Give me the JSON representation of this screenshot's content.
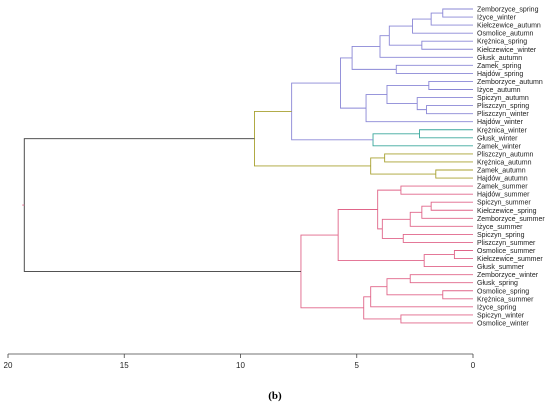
{
  "figure": {
    "caption": "(b)"
  },
  "colors": {
    "root": "#3a3a3a",
    "purple": "#8a87d6",
    "teal": "#3aa79c",
    "olive": "#a8a130",
    "pink": "#e06589"
  },
  "chart_data": {
    "type": "dendrogram",
    "orientation": "right",
    "xlim": [
      20,
      0
    ],
    "ticks": [
      "20",
      "15",
      "10",
      "5",
      "0"
    ],
    "leaves": [
      "Zemborzyce_spring",
      "Iżyce_winter",
      "Kiełczewice_autumn",
      "Osmolice_autumn",
      "Krężnica_spring",
      "Kiełczewice_winter",
      "Głusk_autumn",
      "Zamek_spring",
      "Hajdów_spring",
      "Zemborzyce_autumn",
      "Iżyce_autumn",
      "Spiczyn_autumn",
      "Pliszczyn_spring",
      "Pliszczyn_winter",
      "Hajdów_winter",
      "Krężnica_winter",
      "Głusk_winter",
      "Zamek_winter",
      "Pliszczyn_autumn",
      "Krężnica_autumn",
      "Zamek_autumn",
      "Hajdów_autumn",
      "Zamek_summer",
      "Hajdów_summer",
      "Spiczyn_summer",
      "Kiełczewice_spring",
      "Zemborzyce_summer",
      "Iżyce_summer",
      "Spiczyn_spring",
      "Pliszczyn_summer",
      "Osmolice_summer",
      "Kiełczewice_summer",
      "Głusk_summer",
      "Zemborzyce_winter",
      "Głusk_spring",
      "Osmolice_spring",
      "Krężnica_summer",
      "Iżyce_spring",
      "Spiczyn_winter",
      "Osmolice_winter"
    ],
    "merges": [
      {
        "a": "L0",
        "b": "L1",
        "h": 1.3,
        "c": "purple"
      },
      {
        "a": "M0",
        "b": "L2",
        "h": 1.8,
        "c": "purple"
      },
      {
        "a": "M1",
        "b": "L3",
        "h": 2.6,
        "c": "purple"
      },
      {
        "a": "L4",
        "b": "L5",
        "h": 2.2,
        "c": "purple"
      },
      {
        "a": "M2",
        "b": "M3",
        "h": 3.6,
        "c": "purple"
      },
      {
        "a": "M4",
        "b": "L6",
        "h": 4.0,
        "c": "purple"
      },
      {
        "a": "L7",
        "b": "L8",
        "h": 3.3,
        "c": "purple"
      },
      {
        "a": "M5",
        "b": "M6",
        "h": 5.2,
        "c": "purple"
      },
      {
        "a": "L9",
        "b": "L10",
        "h": 1.9,
        "c": "purple"
      },
      {
        "a": "L12",
        "b": "L13",
        "h": 2.0,
        "c": "purple"
      },
      {
        "a": "L11",
        "b": "M9",
        "h": 2.4,
        "c": "purple"
      },
      {
        "a": "M8",
        "b": "M10",
        "h": 3.7,
        "c": "purple"
      },
      {
        "a": "M11",
        "b": "L14",
        "h": 4.6,
        "c": "purple"
      },
      {
        "a": "M7",
        "b": "M12",
        "h": 5.7,
        "c": "purple"
      },
      {
        "a": "L15",
        "b": "L16",
        "h": 2.3,
        "c": "teal"
      },
      {
        "a": "M14",
        "b": "L17",
        "h": 4.3,
        "c": "teal"
      },
      {
        "a": "M13",
        "b": "M15",
        "h": 7.8,
        "c": "purple"
      },
      {
        "a": "L18",
        "b": "L19",
        "h": 3.8,
        "c": "olive"
      },
      {
        "a": "L20",
        "b": "L21",
        "h": 1.6,
        "c": "olive"
      },
      {
        "a": "M17",
        "b": "M18",
        "h": 4.4,
        "c": "olive"
      },
      {
        "a": "M16",
        "b": "M19",
        "h": 9.4,
        "c": "olive"
      },
      {
        "a": "L22",
        "b": "L23",
        "h": 3.1,
        "c": "pink"
      },
      {
        "a": "L24",
        "b": "L25",
        "h": 1.8,
        "c": "pink"
      },
      {
        "a": "M22",
        "b": "L26",
        "h": 2.2,
        "c": "pink"
      },
      {
        "a": "M23",
        "b": "L27",
        "h": 2.7,
        "c": "pink"
      },
      {
        "a": "L28",
        "b": "L29",
        "h": 3.0,
        "c": "pink"
      },
      {
        "a": "M24",
        "b": "M25",
        "h": 3.9,
        "c": "pink"
      },
      {
        "a": "M21",
        "b": "M26",
        "h": 4.1,
        "c": "pink"
      },
      {
        "a": "L30",
        "b": "L31",
        "h": 0.8,
        "c": "pink"
      },
      {
        "a": "M28",
        "b": "L32",
        "h": 2.1,
        "c": "pink"
      },
      {
        "a": "M27",
        "b": "M29",
        "h": 5.8,
        "c": "pink"
      },
      {
        "a": "L33",
        "b": "L34",
        "h": 2.7,
        "c": "pink"
      },
      {
        "a": "L35",
        "b": "L36",
        "h": 1.3,
        "c": "pink"
      },
      {
        "a": "M31",
        "b": "M32",
        "h": 3.7,
        "c": "pink"
      },
      {
        "a": "M33",
        "b": "L37",
        "h": 4.4,
        "c": "pink"
      },
      {
        "a": "L38",
        "b": "L39",
        "h": 3.1,
        "c": "pink"
      },
      {
        "a": "M34",
        "b": "M35",
        "h": 4.7,
        "c": "pink"
      },
      {
        "a": "M30",
        "b": "M36",
        "h": 7.4,
        "c": "pink"
      },
      {
        "a": "M20",
        "b": "M37",
        "h": 19.3,
        "c": "root"
      }
    ]
  }
}
